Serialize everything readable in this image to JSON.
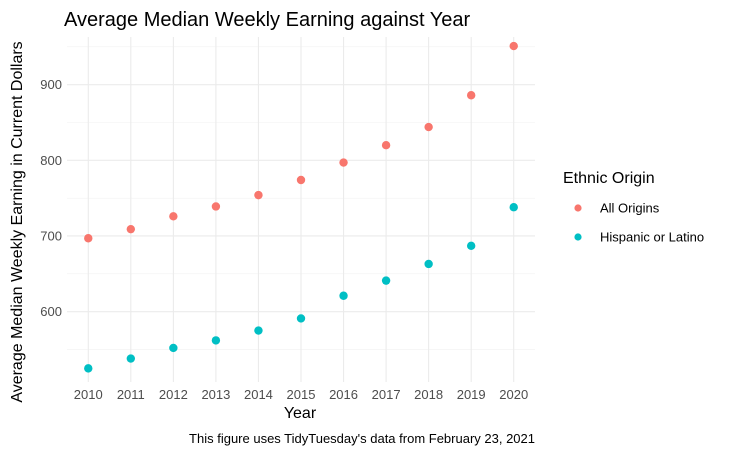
{
  "colors": {
    "all_origins": "#F8766D",
    "hispanic_or_latino": "#00BFC4"
  },
  "chart_data": {
    "type": "scatter",
    "title": "Average Median Weekly Earning against Year",
    "xlabel": "Year",
    "ylabel": "Average Median Weekly Earning in Current Dollars",
    "caption": "This figure uses TidyTuesday's data from February 23, 2021",
    "x": [
      2010,
      2011,
      2012,
      2013,
      2014,
      2015,
      2016,
      2017,
      2018,
      2019,
      2020
    ],
    "xlim": [
      2009.5,
      2020.5
    ],
    "ylim": [
      507,
      963
    ],
    "xticks": [
      2010,
      2011,
      2012,
      2013,
      2014,
      2015,
      2016,
      2017,
      2018,
      2019,
      2020
    ],
    "yticks": [
      600,
      700,
      800,
      900
    ],
    "grid": true,
    "legend": {
      "title": "Ethnic Origin",
      "placement": "right"
    },
    "series": [
      {
        "name": "All Origins",
        "color": "#F8766D",
        "values": [
          697,
          709,
          726,
          739,
          754,
          774,
          797,
          820,
          844,
          886,
          951
        ]
      },
      {
        "name": "Hispanic or Latino",
        "color": "#00BFC4",
        "values": [
          525,
          538,
          552,
          562,
          575,
          591,
          621,
          641,
          663,
          687,
          738
        ]
      }
    ]
  }
}
